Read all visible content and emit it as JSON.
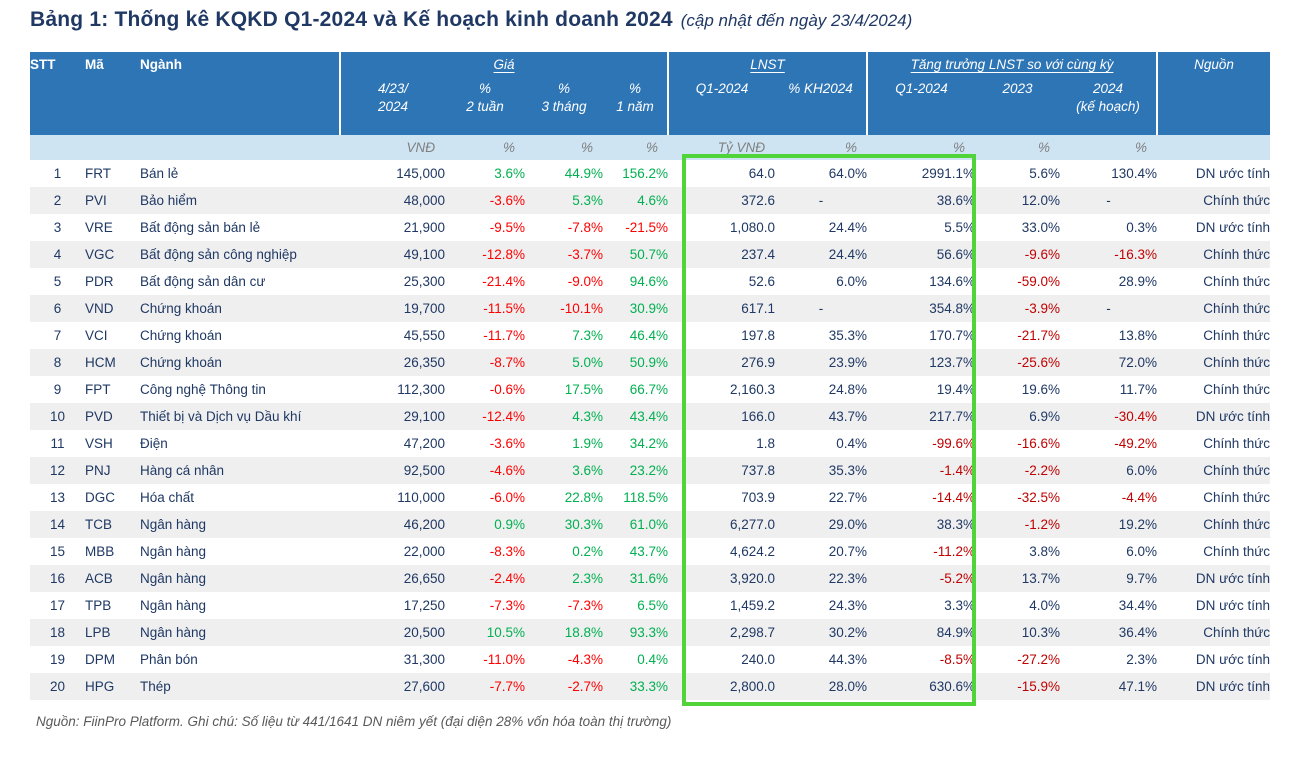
{
  "title": {
    "main": "Bảng 1: Thống kê KQKD Q1-2024 và Kế hoạch kinh doanh 2024",
    "note": "(cập nhật đến ngày 23/4/2024)"
  },
  "table": {
    "header": {
      "stt": "STT",
      "ma": "Mã",
      "nganh": "Ngành",
      "gia_group": "Giá",
      "lnst_group": "LNST",
      "growth_group": "Tăng trưởng LNST so với cùng kỳ",
      "nguon": "Nguồn"
    },
    "columns": [
      {
        "l1": "4/23/",
        "l2": "2024",
        "unit": "VNĐ"
      },
      {
        "l1": "%",
        "l2": "2 tuần",
        "unit": "%"
      },
      {
        "l1": "%",
        "l2": "3 tháng",
        "unit": "%"
      },
      {
        "l1": "%",
        "l2": "1 năm",
        "unit": "%"
      },
      {
        "l1": "Q1-2024",
        "l2": "",
        "unit": "Tỷ VNĐ"
      },
      {
        "l1": "% KH2024",
        "l2": "",
        "unit": "%"
      },
      {
        "l1": "Q1-2024",
        "l2": "",
        "unit": "%"
      },
      {
        "l1": "2023",
        "l2": "",
        "unit": "%"
      },
      {
        "l1": "2024",
        "l2": "(kế hoạch)",
        "unit": "%"
      }
    ],
    "rows": [
      {
        "stt": "1",
        "ma": "FRT",
        "nganh": "Bán lẻ",
        "price": "145,000",
        "w2": "3.6%",
        "m3": "44.9%",
        "y1": "156.2%",
        "lnst": "64.0",
        "kh": "64.0%",
        "g_q1": "2991.1%",
        "g_2023": "5.6%",
        "g_2024": "130.4%",
        "src": "DN ước tính"
      },
      {
        "stt": "2",
        "ma": "PVI",
        "nganh": "Bảo hiểm",
        "price": "48,000",
        "w2": "-3.6%",
        "m3": "5.3%",
        "y1": "4.6%",
        "lnst": "372.6",
        "kh": "-",
        "g_q1": "38.6%",
        "g_2023": "12.0%",
        "g_2024": "-",
        "src": "Chính thức"
      },
      {
        "stt": "3",
        "ma": "VRE",
        "nganh": "Bất động sản bán lẻ",
        "price": "21,900",
        "w2": "-9.5%",
        "m3": "-7.8%",
        "y1": "-21.5%",
        "lnst": "1,080.0",
        "kh": "24.4%",
        "g_q1": "5.5%",
        "g_2023": "33.0%",
        "g_2024": "0.3%",
        "src": "DN ước tính"
      },
      {
        "stt": "4",
        "ma": "VGC",
        "nganh": "Bất động sản công nghiệp",
        "price": "49,100",
        "w2": "-12.8%",
        "m3": "-3.7%",
        "y1": "50.7%",
        "lnst": "237.4",
        "kh": "24.4%",
        "g_q1": "56.6%",
        "g_2023": "-9.6%",
        "g_2024": "-16.3%",
        "src": "Chính thức"
      },
      {
        "stt": "5",
        "ma": "PDR",
        "nganh": "Bất động sản dân cư",
        "price": "25,300",
        "w2": "-21.4%",
        "m3": "-9.0%",
        "y1": "94.6%",
        "lnst": "52.6",
        "kh": "6.0%",
        "g_q1": "134.6%",
        "g_2023": "-59.0%",
        "g_2024": "28.9%",
        "src": "Chính thức"
      },
      {
        "stt": "6",
        "ma": "VND",
        "nganh": "Chứng khoán",
        "price": "19,700",
        "w2": "-11.5%",
        "m3": "-10.1%",
        "y1": "30.9%",
        "lnst": "617.1",
        "kh": "-",
        "g_q1": "354.8%",
        "g_2023": "-3.9%",
        "g_2024": "-",
        "src": "Chính thức"
      },
      {
        "stt": "7",
        "ma": "VCI",
        "nganh": "Chứng khoán",
        "price": "45,550",
        "w2": "-11.7%",
        "m3": "7.3%",
        "y1": "46.4%",
        "lnst": "197.8",
        "kh": "35.3%",
        "g_q1": "170.7%",
        "g_2023": "-21.7%",
        "g_2024": "13.8%",
        "src": "Chính thức"
      },
      {
        "stt": "8",
        "ma": "HCM",
        "nganh": "Chứng khoán",
        "price": "26,350",
        "w2": "-8.7%",
        "m3": "5.0%",
        "y1": "50.9%",
        "lnst": "276.9",
        "kh": "23.9%",
        "g_q1": "123.7%",
        "g_2023": "-25.6%",
        "g_2024": "72.0%",
        "src": "Chính thức"
      },
      {
        "stt": "9",
        "ma": "FPT",
        "nganh": "Công nghệ Thông tin",
        "price": "112,300",
        "w2": "-0.6%",
        "m3": "17.5%",
        "y1": "66.7%",
        "lnst": "2,160.3",
        "kh": "24.8%",
        "g_q1": "19.4%",
        "g_2023": "19.6%",
        "g_2024": "11.7%",
        "src": "Chính thức"
      },
      {
        "stt": "10",
        "ma": "PVD",
        "nganh": "Thiết bị và Dịch vụ Dầu khí",
        "price": "29,100",
        "w2": "-12.4%",
        "m3": "4.3%",
        "y1": "43.4%",
        "lnst": "166.0",
        "kh": "43.7%",
        "g_q1": "217.7%",
        "g_2023": "6.9%",
        "g_2024": "-30.4%",
        "src": "DN ước tính"
      },
      {
        "stt": "11",
        "ma": "VSH",
        "nganh": "Điện",
        "price": "47,200",
        "w2": "-3.6%",
        "m3": "1.9%",
        "y1": "34.2%",
        "lnst": "1.8",
        "kh": "0.4%",
        "g_q1": "-99.6%",
        "g_2023": "-16.6%",
        "g_2024": "-49.2%",
        "src": "Chính thức"
      },
      {
        "stt": "12",
        "ma": "PNJ",
        "nganh": "Hàng cá nhân",
        "price": "92,500",
        "w2": "-4.6%",
        "m3": "3.6%",
        "y1": "23.2%",
        "lnst": "737.8",
        "kh": "35.3%",
        "g_q1": "-1.4%",
        "g_2023": "-2.2%",
        "g_2024": "6.0%",
        "src": "Chính thức"
      },
      {
        "stt": "13",
        "ma": "DGC",
        "nganh": "Hóa chất",
        "price": "110,000",
        "w2": "-6.0%",
        "m3": "22.8%",
        "y1": "118.5%",
        "lnst": "703.9",
        "kh": "22.7%",
        "g_q1": "-14.4%",
        "g_2023": "-32.5%",
        "g_2024": "-4.4%",
        "src": "Chính thức"
      },
      {
        "stt": "14",
        "ma": "TCB",
        "nganh": "Ngân hàng",
        "price": "46,200",
        "w2": "0.9%",
        "m3": "30.3%",
        "y1": "61.0%",
        "lnst": "6,277.0",
        "kh": "29.0%",
        "g_q1": "38.3%",
        "g_2023": "-1.2%",
        "g_2024": "19.2%",
        "src": "Chính thức"
      },
      {
        "stt": "15",
        "ma": "MBB",
        "nganh": "Ngân hàng",
        "price": "22,000",
        "w2": "-8.3%",
        "m3": "0.2%",
        "y1": "43.7%",
        "lnst": "4,624.2",
        "kh": "20.7%",
        "g_q1": "-11.2%",
        "g_2023": "3.8%",
        "g_2024": "6.0%",
        "src": "Chính thức"
      },
      {
        "stt": "16",
        "ma": "ACB",
        "nganh": "Ngân hàng",
        "price": "26,650",
        "w2": "-2.4%",
        "m3": "2.3%",
        "y1": "31.6%",
        "lnst": "3,920.0",
        "kh": "22.3%",
        "g_q1": "-5.2%",
        "g_2023": "13.7%",
        "g_2024": "9.7%",
        "src": "DN ước tính"
      },
      {
        "stt": "17",
        "ma": "TPB",
        "nganh": "Ngân hàng",
        "price": "17,250",
        "w2": "-7.3%",
        "m3": "-7.3%",
        "y1": "6.5%",
        "lnst": "1,459.2",
        "kh": "24.3%",
        "g_q1": "3.3%",
        "g_2023": "4.0%",
        "g_2024": "34.4%",
        "src": "DN ước tính"
      },
      {
        "stt": "18",
        "ma": "LPB",
        "nganh": "Ngân hàng",
        "price": "20,500",
        "w2": "10.5%",
        "m3": "18.8%",
        "y1": "93.3%",
        "lnst": "2,298.7",
        "kh": "30.2%",
        "g_q1": "84.9%",
        "g_2023": "10.3%",
        "g_2024": "36.4%",
        "src": "Chính thức"
      },
      {
        "stt": "19",
        "ma": "DPM",
        "nganh": "Phân bón",
        "price": "31,300",
        "w2": "-11.0%",
        "m3": "-4.3%",
        "y1": "0.4%",
        "lnst": "240.0",
        "kh": "44.3%",
        "g_q1": "-8.5%",
        "g_2023": "-27.2%",
        "g_2024": "2.3%",
        "src": "DN ước tính"
      },
      {
        "stt": "20",
        "ma": "HPG",
        "nganh": "Thép",
        "price": "27,600",
        "w2": "-7.7%",
        "m3": "-2.7%",
        "y1": "33.3%",
        "lnst": "2,800.0",
        "kh": "28.0%",
        "g_q1": "630.6%",
        "g_2023": "-15.9%",
        "g_2024": "47.1%",
        "src": "DN ước tính"
      }
    ]
  },
  "footer": {
    "note": "Nguồn: FiinPro Platform. Ghi chú: Số liệu từ 441/1641 DN niêm yết (đại diện 28% vốn hóa toàn thị trường)"
  },
  "colors": {
    "header_blue": "#2E75B6",
    "unit_row_blue": "#CEE4F3",
    "navy_text": "#1F3864",
    "positive_green": "#00B050",
    "negative_red": "#FF0000",
    "growth_negative_dark_red": "#C00000",
    "highlight_green": "#50D43A",
    "row_stripe_gray": "#EFEFEF"
  }
}
